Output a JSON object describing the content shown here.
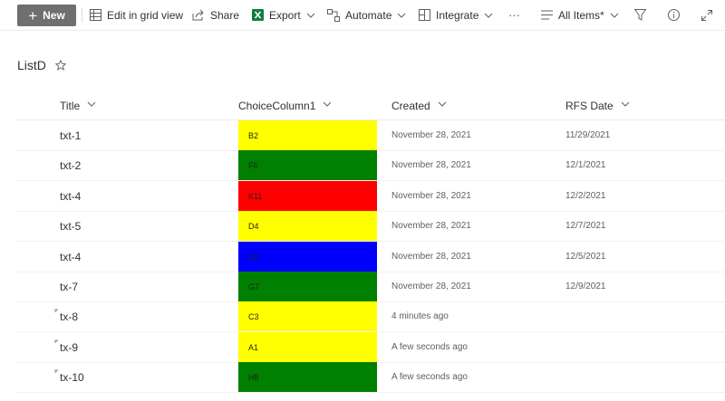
{
  "toolbar": {
    "new_label": "New",
    "edit_grid_label": "Edit in grid view",
    "share_label": "Share",
    "export_label": "Export",
    "automate_label": "Automate",
    "integrate_label": "Integrate",
    "more_label": "···",
    "view_label": "All Items*"
  },
  "page": {
    "title": "ListD"
  },
  "columns": [
    "Title",
    "ChoiceColumn1",
    "Created",
    "RFS Date"
  ],
  "rows": [
    {
      "title": "txt-1",
      "choice": "B2",
      "color": "#ffff00",
      "created": "November 28, 2021",
      "rfs": "11/29/2021",
      "is_new": false
    },
    {
      "title": "txt-2",
      "choice": "F6",
      "color": "#008000",
      "created": "November 28, 2021",
      "rfs": "12/1/2021",
      "is_new": false
    },
    {
      "title": "txt-4",
      "choice": "K11",
      "color": "#ff0000",
      "created": "November 28, 2021",
      "rfs": "12/2/2021",
      "is_new": false
    },
    {
      "title": "txt-5",
      "choice": "D4",
      "color": "#ffff00",
      "created": "November 28, 2021",
      "rfs": "12/7/2021",
      "is_new": false
    },
    {
      "title": "txt-4",
      "choice": "D0",
      "color": "#0000ff",
      "created": "November 28, 2021",
      "rfs": "12/5/2021",
      "is_new": false
    },
    {
      "title": "tx-7",
      "choice": "G7",
      "color": "#008000",
      "created": "November 28, 2021",
      "rfs": "12/9/2021",
      "is_new": false
    },
    {
      "title": "tx-8",
      "choice": "C3",
      "color": "#ffff00",
      "created": "4 minutes ago",
      "rfs": "",
      "is_new": true
    },
    {
      "title": "tx-9",
      "choice": "A1",
      "color": "#ffff00",
      "created": "A few seconds ago",
      "rfs": "",
      "is_new": true
    },
    {
      "title": "tx-10",
      "choice": "H8",
      "color": "#008000",
      "created": "A few seconds ago",
      "rfs": "",
      "is_new": true
    }
  ],
  "colors": {
    "accent_excel": "#107c41",
    "new_button_bg": "#6f6f6f"
  }
}
